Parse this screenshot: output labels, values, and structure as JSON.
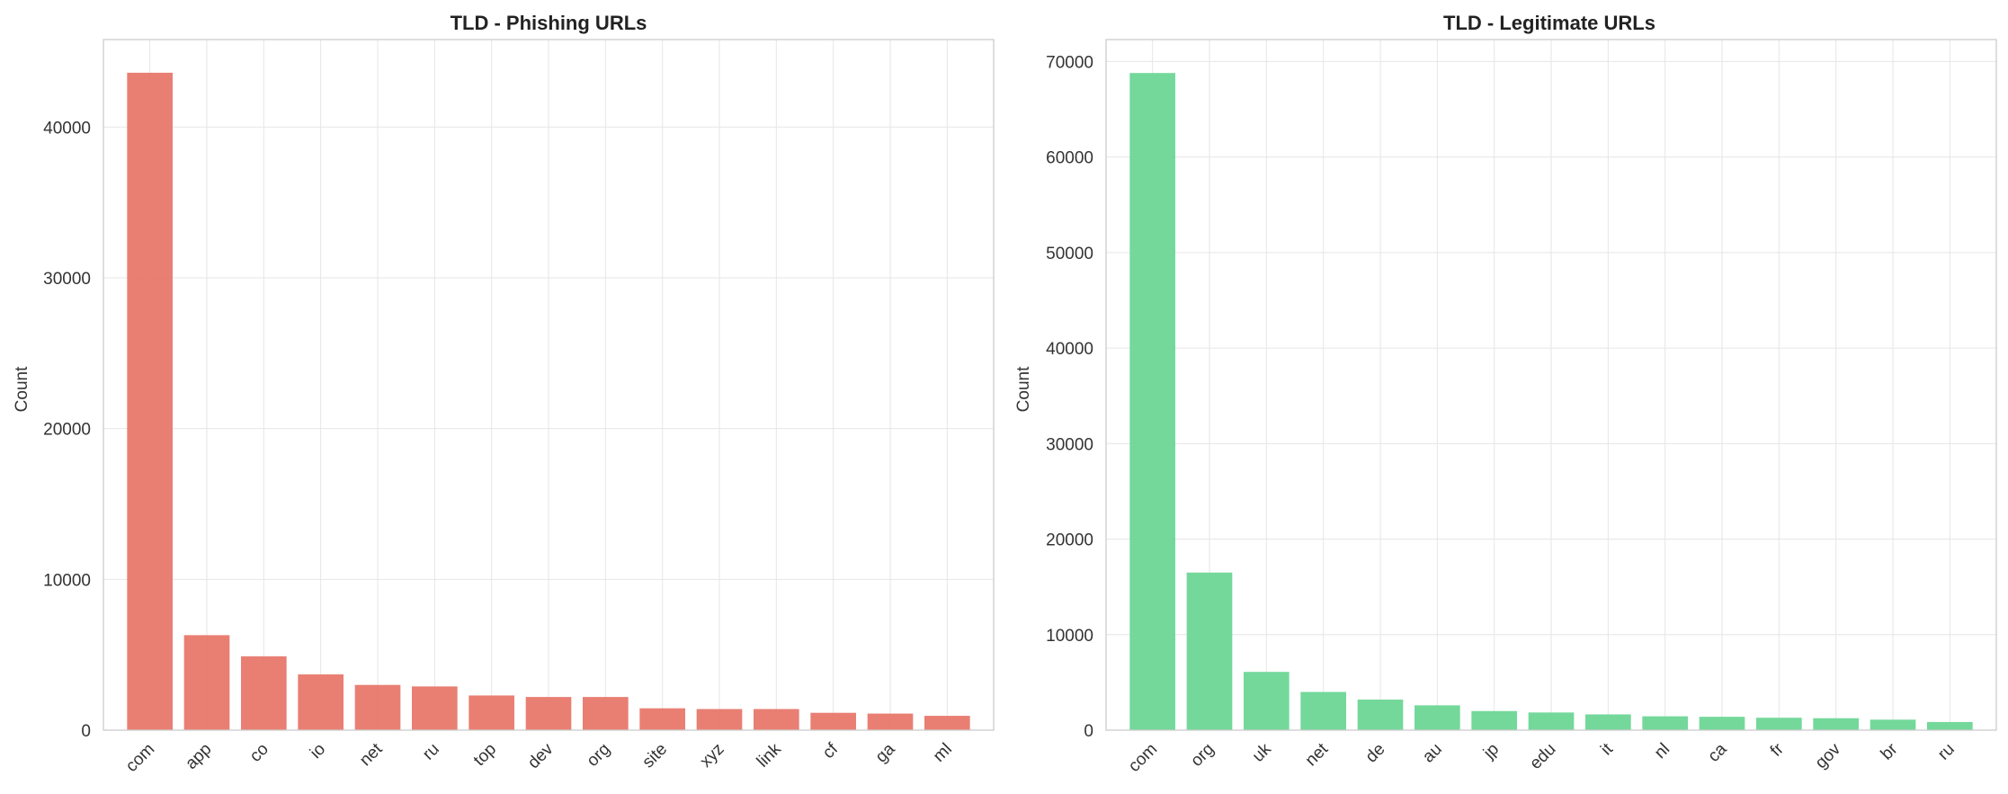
{
  "chart_data": [
    {
      "type": "bar",
      "title": "TLD - Phishing URLs",
      "xlabel": "",
      "ylabel": "Count",
      "ylim": [
        0,
        45800
      ],
      "yticks": [
        0,
        10000,
        20000,
        30000,
        40000
      ],
      "grid": true,
      "color": "#e8786c",
      "categories": [
        "com",
        "app",
        "co",
        "io",
        "net",
        "ru",
        "top",
        "dev",
        "org",
        "site",
        "xyz",
        "link",
        "cf",
        "ga",
        "ml"
      ],
      "values": [
        43600,
        6300,
        4900,
        3700,
        3000,
        2900,
        2300,
        2200,
        2200,
        1450,
        1400,
        1400,
        1150,
        1100,
        950
      ]
    },
    {
      "type": "bar",
      "title": "TLD - Legitimate URLs",
      "xlabel": "",
      "ylabel": "Count",
      "ylim": [
        0,
        72300
      ],
      "yticks": [
        0,
        10000,
        20000,
        30000,
        40000,
        50000,
        60000,
        70000
      ],
      "grid": true,
      "color": "#6dd696",
      "categories": [
        "com",
        "org",
        "uk",
        "net",
        "de",
        "au",
        "jp",
        "edu",
        "it",
        "nl",
        "ca",
        "fr",
        "gov",
        "br",
        "ru"
      ],
      "values": [
        68800,
        16500,
        6100,
        4000,
        3200,
        2600,
        2000,
        1850,
        1650,
        1450,
        1400,
        1300,
        1250,
        1100,
        850
      ]
    }
  ]
}
